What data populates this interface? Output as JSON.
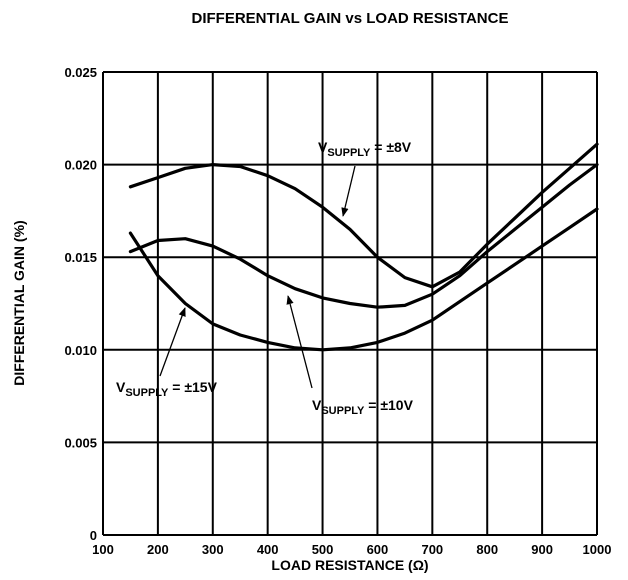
{
  "chart_data": {
    "type": "line",
    "title": "DIFFERENTIAL GAIN vs LOAD RESISTANCE",
    "xlabel": "LOAD RESISTANCE (Ω)",
    "ylabel": "DIFFERENTIAL GAIN (%)",
    "x": [
      150,
      200,
      250,
      300,
      350,
      400,
      450,
      500,
      550,
      600,
      650,
      700,
      750,
      800,
      850,
      900,
      950,
      1000
    ],
    "series": [
      {
        "label": [
          "V",
          "SUPPLY",
          " = ±8V"
        ],
        "color": "#000000",
        "values": [
          0.0188,
          0.0193,
          0.0198,
          0.02,
          0.0199,
          0.0194,
          0.0187,
          0.0177,
          0.0165,
          0.015,
          0.0139,
          0.0134,
          0.0142,
          0.0157,
          0.0171,
          0.0185,
          0.0198,
          0.0211
        ]
      },
      {
        "label": [
          "V",
          "SUPPLY",
          " = ±10V"
        ],
        "color": "#000000",
        "values": [
          0.0153,
          0.0159,
          0.016,
          0.0156,
          0.0149,
          0.014,
          0.0133,
          0.0128,
          0.0125,
          0.0123,
          0.0124,
          0.013,
          0.014,
          0.0153,
          0.0165,
          0.0177,
          0.0189,
          0.02
        ]
      },
      {
        "label": [
          "V",
          "SUPPLY",
          " = ±15V"
        ],
        "color": "#000000",
        "values": [
          0.0163,
          0.014,
          0.0125,
          0.0114,
          0.0108,
          0.0104,
          0.0101,
          0.01,
          0.0101,
          0.0104,
          0.0109,
          0.0116,
          0.0126,
          0.0136,
          0.0146,
          0.0156,
          0.0166,
          0.0176
        ]
      }
    ],
    "xlim": [
      100,
      1000
    ],
    "xticks": [
      100,
      200,
      300,
      400,
      500,
      600,
      700,
      800,
      900,
      1000
    ],
    "ylim": [
      0,
      0.025
    ],
    "yticks": [
      0,
      0.005,
      {
        "value": 0.01,
        "label": "0.010"
      },
      0.015,
      {
        "value": 0.02,
        "label": "0.020"
      },
      0.025
    ],
    "grid": true
  }
}
